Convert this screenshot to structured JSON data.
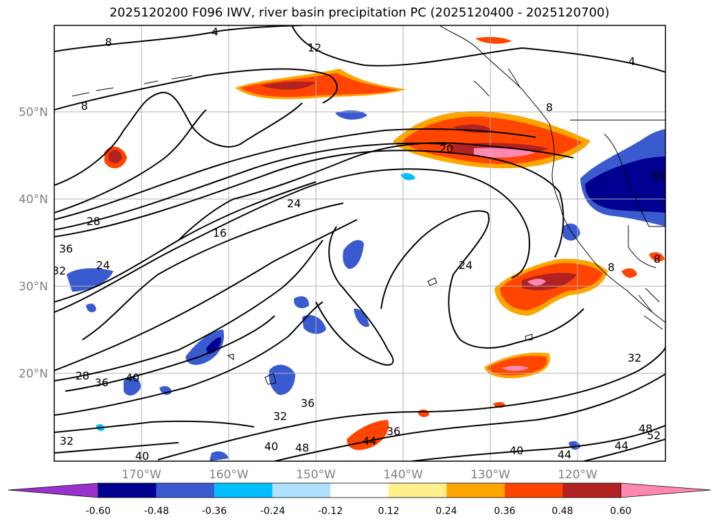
{
  "title": "2025120200 F096 IWV, river basin precipitation PC (2025120400 - 2025120700)",
  "axes": {
    "lon_labels": [
      "170°W",
      "160°W",
      "150°W",
      "140°W",
      "130°W",
      "120°W"
    ],
    "lat_labels": [
      "50°N",
      "40°N",
      "30°N",
      "20°N"
    ]
  },
  "contour_labels": [
    "4",
    "8",
    "12",
    "8",
    "8",
    "4",
    "20",
    "24",
    "16",
    "28",
    "36",
    "24",
    "32",
    "24",
    "28",
    "36",
    "40",
    "36",
    "32",
    "36",
    "40",
    "48",
    "44",
    "40",
    "44",
    "44",
    "48",
    "52",
    "32",
    "40",
    "32",
    "8",
    "8",
    "36"
  ],
  "colorbar": {
    "tick_labels": [
      "-0.60",
      "-0.48",
      "-0.36",
      "-0.24",
      "-0.12",
      "0.12",
      "0.24",
      "0.36",
      "0.48",
      "0.60"
    ],
    "colors": {
      "under": "#9932cc",
      "bins": [
        "#000090",
        "#3a5bcf",
        "#00bfff",
        "#b0e2ff",
        "#ffffff",
        "#fff08c",
        "#ffa500",
        "#ff4500",
        "#b22222",
        "#ff88b0"
      ]
    }
  }
}
